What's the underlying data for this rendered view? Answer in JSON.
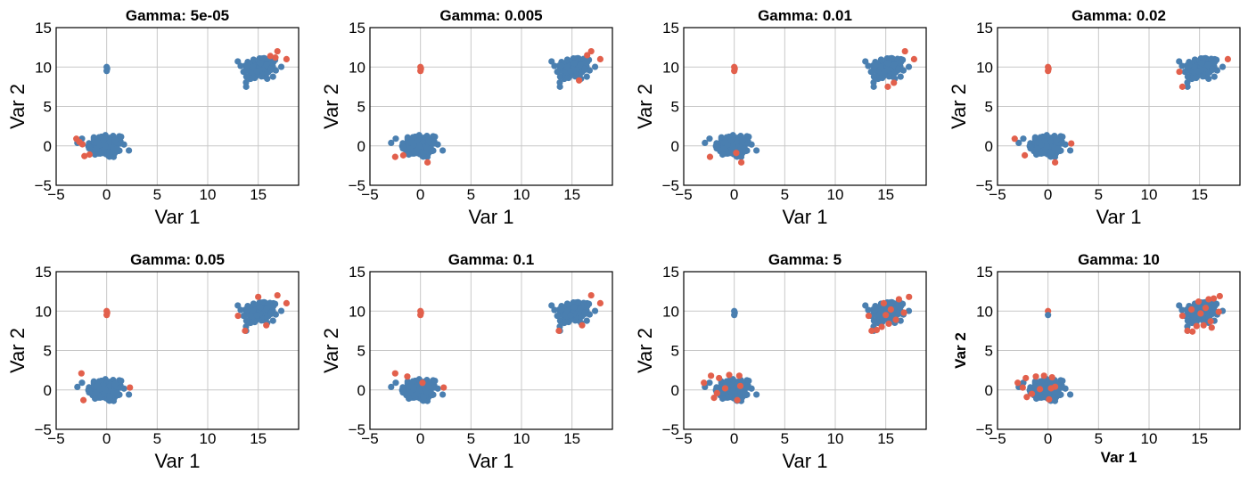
{
  "colors": {
    "normal": "#4a7fb0",
    "outlier": "#e2604c"
  },
  "axis_labels": {
    "x": "Var 1",
    "y": "Var 2"
  },
  "chart_data": [
    {
      "type": "scatter",
      "title": "Gamma: 5e-05",
      "xlabel": "Var 1",
      "ylabel": "Var 2",
      "xlim": [
        -5,
        19
      ],
      "ylim": [
        -5,
        15
      ],
      "xticks": [
        -5,
        0,
        5,
        10,
        15
      ],
      "yticks": [
        -5,
        0,
        5,
        10,
        15
      ],
      "grid": true,
      "outlier_seed": 11,
      "outlier_points": [
        [
          -3.0,
          0.9
        ],
        [
          -2.7,
          0.5
        ],
        [
          -2.4,
          0.2
        ],
        [
          -2.2,
          -1.3
        ],
        [
          -1.7,
          -1.1
        ],
        [
          16.9,
          12.0
        ],
        [
          17.8,
          11.0
        ],
        [
          16.7,
          11.2
        ],
        [
          16.2,
          11.4
        ]
      ],
      "blue_small_cluster": true,
      "red_small_cluster": false
    },
    {
      "type": "scatter",
      "title": "Gamma: 0.005",
      "xlabel": "Var 1",
      "ylabel": "Var 2",
      "xlim": [
        -5,
        19
      ],
      "ylim": [
        -5,
        15
      ],
      "xticks": [
        -5,
        0,
        5,
        10,
        15
      ],
      "yticks": [
        -5,
        0,
        5,
        10,
        15
      ],
      "grid": true,
      "outlier_seed": 22,
      "outlier_points": [
        [
          -2.5,
          -1.4
        ],
        [
          -1.7,
          -1.2
        ],
        [
          0.7,
          -2.1
        ],
        [
          16.9,
          12.0
        ],
        [
          17.8,
          11.0
        ],
        [
          15.7,
          8.3
        ],
        [
          16.5,
          11.5
        ]
      ],
      "blue_small_cluster": false,
      "red_small_cluster": true
    },
    {
      "type": "scatter",
      "title": "Gamma: 0.01",
      "xlabel": "Var 1",
      "ylabel": "Var 2",
      "xlim": [
        -5,
        19
      ],
      "ylim": [
        -5,
        15
      ],
      "xticks": [
        -5,
        0,
        5,
        10,
        15
      ],
      "yticks": [
        -5,
        0,
        5,
        10,
        15
      ],
      "grid": true,
      "outlier_seed": 33,
      "outlier_points": [
        [
          -2.4,
          -1.4
        ],
        [
          0.7,
          -2.1
        ],
        [
          0.2,
          -0.9
        ],
        [
          16.9,
          12.0
        ],
        [
          17.8,
          11.0
        ],
        [
          15.2,
          7.5
        ],
        [
          15.8,
          8.0
        ]
      ],
      "blue_small_cluster": false,
      "red_small_cluster": true
    },
    {
      "type": "scatter",
      "title": "Gamma: 0.02",
      "xlabel": "Var 1",
      "ylabel": "Var 2",
      "xlim": [
        -5,
        19
      ],
      "ylim": [
        -5,
        15
      ],
      "xticks": [
        -5,
        0,
        5,
        10,
        15
      ],
      "yticks": [
        -5,
        0,
        5,
        10,
        15
      ],
      "grid": true,
      "outlier_seed": 44,
      "outlier_points": [
        [
          -3.3,
          0.9
        ],
        [
          -2.3,
          -1.2
        ],
        [
          0.7,
          -2.1
        ],
        [
          2.3,
          0.3
        ],
        [
          13.3,
          7.5
        ],
        [
          13.0,
          9.4
        ],
        [
          17.8,
          11.0
        ]
      ],
      "blue_small_cluster": false,
      "red_small_cluster": true
    },
    {
      "type": "scatter",
      "title": "Gamma: 0.05",
      "xlabel": "Var 1",
      "ylabel": "Var 2",
      "xlim": [
        -5,
        19
      ],
      "ylim": [
        -5,
        15
      ],
      "xticks": [
        -5,
        0,
        5,
        10,
        15
      ],
      "yticks": [
        -5,
        0,
        5,
        10,
        15
      ],
      "grid": true,
      "outlier_seed": 55,
      "outlier_points": [
        [
          -2.5,
          2.1
        ],
        [
          -2.3,
          -1.3
        ],
        [
          2.3,
          0.3
        ],
        [
          13.0,
          9.4
        ],
        [
          13.7,
          7.5
        ],
        [
          15.0,
          11.8
        ],
        [
          16.9,
          12.0
        ],
        [
          17.8,
          11.0
        ],
        [
          15.8,
          8.2
        ]
      ],
      "blue_small_cluster": false,
      "red_small_cluster": true
    },
    {
      "type": "scatter",
      "title": "Gamma: 0.1",
      "xlabel": "Var 1",
      "ylabel": "Var 2",
      "xlim": [
        -5,
        19
      ],
      "ylim": [
        -5,
        15
      ],
      "xticks": [
        -5,
        0,
        5,
        10,
        15
      ],
      "yticks": [
        -5,
        0,
        5,
        10,
        15
      ],
      "grid": true,
      "outlier_seed": 66,
      "outlier_points": [
        [
          -2.5,
          2.1
        ],
        [
          -1.3,
          1.7
        ],
        [
          2.3,
          0.3
        ],
        [
          0.2,
          0.9
        ],
        [
          13.7,
          7.5
        ],
        [
          16.9,
          12.0
        ],
        [
          17.8,
          11.0
        ],
        [
          16.0,
          8.2
        ]
      ],
      "blue_small_cluster": false,
      "red_small_cluster": true
    },
    {
      "type": "scatter",
      "title": "Gamma: 5",
      "xlabel": "Var 1",
      "ylabel": "Var 2",
      "xlim": [
        -5,
        19
      ],
      "ylim": [
        -5,
        15
      ],
      "xticks": [
        -5,
        0,
        5,
        10,
        15
      ],
      "yticks": [
        -5,
        0,
        5,
        10,
        15
      ],
      "grid": true,
      "outlier_seed": 77,
      "outlier_points": [
        [
          -3.0,
          0.9
        ],
        [
          -2.3,
          1.8
        ],
        [
          -1.5,
          1.5
        ],
        [
          -0.5,
          1.9
        ],
        [
          0.5,
          1.8
        ],
        [
          -1.7,
          -0.4
        ],
        [
          0.3,
          -1.3
        ],
        [
          0.6,
          0.5
        ],
        [
          -0.9,
          0.2
        ],
        [
          -2.0,
          -1.0
        ],
        [
          13.3,
          9.4
        ],
        [
          14.1,
          7.6
        ],
        [
          13.6,
          7.5
        ],
        [
          14.6,
          8.0
        ],
        [
          15.0,
          9.5
        ],
        [
          15.5,
          10.2
        ],
        [
          16.0,
          8.9
        ],
        [
          14.8,
          11.0
        ],
        [
          16.3,
          11.5
        ],
        [
          17.3,
          11.8
        ],
        [
          16.8,
          9.8
        ],
        [
          15.3,
          8.4
        ]
      ],
      "blue_small_cluster": true,
      "red_small_cluster": false
    },
    {
      "type": "scatter",
      "title": "Gamma: 10",
      "xlabel": "Var 1",
      "ylabel": "Var 2",
      "label_style": "bold",
      "xlim": [
        -5,
        19
      ],
      "ylim": [
        -5,
        15
      ],
      "xticks": [
        -5,
        0,
        5,
        10,
        15
      ],
      "yticks": [
        -5,
        0,
        5,
        10,
        15
      ],
      "grid": true,
      "outlier_seed": 88,
      "outlier_points": [
        [
          -3.0,
          0.9
        ],
        [
          -2.5,
          0.3
        ],
        [
          -2.2,
          1.5
        ],
        [
          -1.2,
          1.7
        ],
        [
          -0.4,
          1.8
        ],
        [
          0.4,
          1.6
        ],
        [
          -1.6,
          -0.5
        ],
        [
          0.1,
          -1.2
        ],
        [
          0.7,
          0.4
        ],
        [
          -0.8,
          0.1
        ],
        [
          -2.1,
          -0.9
        ],
        [
          0.3,
          0.2
        ],
        [
          13.3,
          9.4
        ],
        [
          13.8,
          7.5
        ],
        [
          14.3,
          7.4
        ],
        [
          14.7,
          8.1
        ],
        [
          15.1,
          9.7
        ],
        [
          15.6,
          10.4
        ],
        [
          16.1,
          8.7
        ],
        [
          14.9,
          11.2
        ],
        [
          16.4,
          11.6
        ],
        [
          17.0,
          11.9
        ],
        [
          16.9,
          9.9
        ],
        [
          15.4,
          8.2
        ],
        [
          14.2,
          10.2
        ],
        [
          15.9,
          11.5
        ],
        [
          16.2,
          7.9
        ]
      ],
      "blue_small_cluster": true,
      "red_small_cluster": false,
      "small_cluster_mixed": true
    }
  ]
}
